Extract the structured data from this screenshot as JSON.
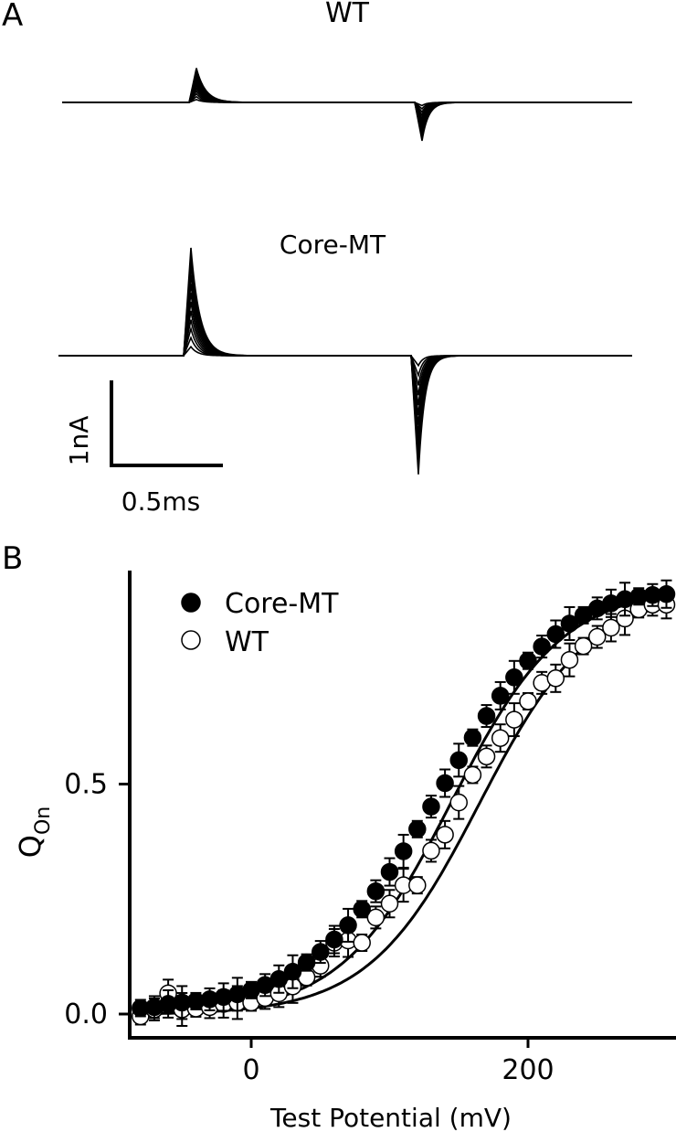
{
  "panel_a": {
    "label": "A",
    "wt_label": "WT",
    "core_label": "Core-MT",
    "scale_current": "1nA",
    "scale_time": "0.5ms"
  },
  "panel_b": {
    "label": "B"
  },
  "chart_data": [
    {
      "type": "line",
      "title": "",
      "series": [
        {
          "name": "WT",
          "on_peak_nA": 0.25,
          "off_peak_nA": -0.28
        },
        {
          "name": "Core-MT",
          "on_peak_nA": 1.0,
          "off_peak_nA": -1.1
        }
      ],
      "scale_bar": {
        "current": "1nA",
        "time": "0.5ms"
      }
    },
    {
      "type": "scatter",
      "xlabel": "Test Potential (mV)",
      "ylabel": "Q",
      "ylabel_sub": "On",
      "xlim": [
        -85,
        300
      ],
      "ylim": [
        -0.04,
        0.92
      ],
      "xticks": [
        0,
        200
      ],
      "yticks": [
        0.0,
        0.5
      ],
      "ytick_labels": [
        "0.0",
        "0.5"
      ],
      "legend_position": "top-left",
      "series": [
        {
          "name": "Core-MT",
          "marker": "filled-circle",
          "x": [
            -80,
            -70,
            -60,
            -50,
            -40,
            -30,
            -20,
            -10,
            0,
            10,
            20,
            30,
            40,
            50,
            60,
            70,
            80,
            90,
            100,
            110,
            120,
            130,
            140,
            150,
            160,
            170,
            180,
            190,
            200,
            210,
            220,
            230,
            240,
            250,
            260,
            270,
            280,
            290,
            300
          ],
          "y": [
            0.013,
            0.015,
            0.022,
            0.025,
            0.028,
            0.032,
            0.037,
            0.043,
            0.052,
            0.063,
            0.076,
            0.092,
            0.112,
            0.135,
            0.162,
            0.193,
            0.228,
            0.267,
            0.309,
            0.354,
            0.402,
            0.451,
            0.502,
            0.552,
            0.601,
            0.648,
            0.692,
            0.732,
            0.768,
            0.799,
            0.826,
            0.849,
            0.867,
            0.882,
            0.893,
            0.902,
            0.908,
            0.911,
            0.913
          ],
          "fit": {
            "v_half_mV": 145,
            "slope_mV": 40
          }
        },
        {
          "name": "WT",
          "marker": "open-circle",
          "x": [
            -80,
            -70,
            -60,
            -50,
            -40,
            -30,
            -20,
            -10,
            0,
            10,
            20,
            30,
            40,
            50,
            60,
            70,
            80,
            90,
            100,
            110,
            120,
            130,
            140,
            150,
            160,
            170,
            180,
            190,
            200,
            210,
            220,
            230,
            240,
            250,
            260,
            270,
            280,
            290,
            300
          ],
          "y": [
            -0.005,
            0.01,
            0.045,
            0.01,
            0.012,
            0.015,
            0.022,
            0.025,
            0.025,
            0.035,
            0.045,
            0.06,
            0.08,
            0.105,
            0.155,
            0.16,
            0.155,
            0.21,
            0.24,
            0.28,
            0.28,
            0.355,
            0.39,
            0.46,
            0.52,
            0.56,
            0.6,
            0.64,
            0.68,
            0.72,
            0.73,
            0.77,
            0.8,
            0.82,
            0.84,
            0.86,
            0.88,
            0.89,
            0.89
          ],
          "fit": {
            "v_half_mV": 165,
            "slope_mV": 40
          }
        }
      ]
    }
  ]
}
